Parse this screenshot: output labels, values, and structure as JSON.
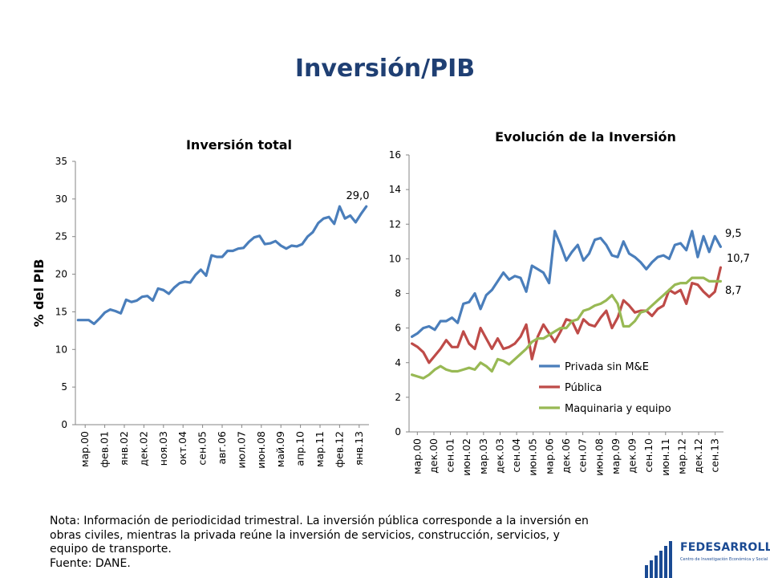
{
  "title": "Inversión/PIB",
  "note": {
    "lines": [
      "Nota: Información de periodicidad trimestral. La inversión pública corresponde a la inversión en",
      "obras civiles, mientras la privada reúne la inversión de servicios, construcción, servicios, y",
      "equipo de transporte.",
      "Fuente: DANE."
    ]
  },
  "logo": {
    "name": "FEDESARROLLO",
    "subtitle": "Centro de Investigación Económica y Social"
  },
  "colors": {
    "title": "#1f3f73",
    "line1": "#4a7ebb",
    "privada": "#4a7ebb",
    "publica": "#be4b48",
    "maquinaria": "#98b954"
  },
  "chart_data": [
    {
      "type": "line",
      "title": "Inversión total",
      "ylabel": "% del PIB",
      "ylim": [
        0,
        35
      ],
      "yticks": [
        0,
        5,
        10,
        15,
        20,
        25,
        30,
        35
      ],
      "xticklabels": [
        "мар.00",
        "фев.01",
        "янв.02",
        "дек.02",
        "ноя.03",
        "окт.04",
        "сен.05",
        "авг.06",
        "июл.07",
        "июн.08",
        "май.09",
        "апр.10",
        "мар.11",
        "фев.12",
        "янв.13"
      ],
      "annotation": "29,0",
      "series": [
        {
          "values": [
            13.9,
            13.9,
            13.9,
            13.4,
            14.1,
            14.9,
            15.3,
            15.1,
            14.8,
            16.6,
            16.3,
            16.5,
            17.0,
            17.1,
            16.5,
            18.1,
            17.9,
            17.4,
            18.2,
            18.8,
            19.0,
            18.9,
            19.9,
            20.6,
            19.8,
            22.5,
            22.3,
            22.3,
            23.1,
            23.1,
            23.4,
            23.5,
            24.3,
            24.9,
            25.1,
            24.0,
            24.1,
            24.4,
            23.8,
            23.4,
            23.8,
            23.7,
            24.0,
            25.0,
            25.6,
            26.8,
            27.4,
            27.6,
            26.7,
            29.0,
            27.4,
            27.8,
            26.9,
            28.0,
            29.0
          ]
        }
      ]
    },
    {
      "type": "line",
      "title": "Evolución de la Inversión",
      "ylim": [
        0,
        16
      ],
      "yticks": [
        0,
        2,
        4,
        6,
        8,
        10,
        12,
        14,
        16
      ],
      "xticklabels": [
        "мар.00",
        "дек.00",
        "сен.01",
        "июн.02",
        "мар.03",
        "дек.03",
        "сен.04",
        "июн.05",
        "мар.06",
        "дек.06",
        "сен.07",
        "июн.08",
        "мар.09",
        "дек.09",
        "сен.10",
        "июн.11",
        "мар.12",
        "дек.12",
        "сен.13"
      ],
      "legend_position": "bottom-right",
      "annotations": [
        "9,5",
        "10,7",
        "8,7"
      ],
      "series": [
        {
          "name": "Privada sin M&E",
          "values": [
            5.5,
            5.7,
            6.0,
            6.1,
            5.9,
            6.4,
            6.4,
            6.6,
            6.3,
            7.4,
            7.5,
            8.0,
            7.1,
            7.9,
            8.2,
            8.7,
            9.2,
            8.8,
            9.0,
            8.9,
            8.1,
            9.6,
            9.4,
            9.2,
            8.6,
            11.6,
            10.8,
            9.9,
            10.4,
            10.8,
            9.9,
            10.3,
            11.1,
            11.2,
            10.8,
            10.2,
            10.1,
            11.0,
            10.3,
            10.1,
            9.8,
            9.4,
            9.8,
            10.1,
            10.2,
            10.0,
            10.8,
            10.9,
            10.5,
            11.6,
            10.1,
            11.3,
            10.4,
            11.3,
            10.7
          ]
        },
        {
          "name": "Pública",
          "values": [
            5.1,
            4.9,
            4.6,
            4.0,
            4.4,
            4.8,
            5.3,
            4.9,
            4.9,
            5.8,
            5.1,
            4.8,
            6.0,
            5.4,
            4.8,
            5.4,
            4.8,
            4.9,
            5.1,
            5.5,
            6.2,
            4.2,
            5.5,
            6.2,
            5.7,
            5.2,
            5.8,
            6.5,
            6.4,
            5.7,
            6.5,
            6.2,
            6.1,
            6.6,
            7.0,
            6.0,
            6.6,
            7.6,
            7.3,
            6.9,
            7.0,
            7.0,
            6.7,
            7.1,
            7.3,
            8.2,
            8.0,
            8.2,
            7.4,
            8.6,
            8.5,
            8.1,
            7.8,
            8.1,
            9.5
          ]
        },
        {
          "name": "Maquinaria y equipo",
          "values": [
            3.3,
            3.2,
            3.1,
            3.3,
            3.6,
            3.8,
            3.6,
            3.5,
            3.5,
            3.6,
            3.7,
            3.6,
            4.0,
            3.8,
            3.5,
            4.2,
            4.1,
            3.9,
            4.2,
            4.5,
            4.8,
            5.2,
            5.4,
            5.4,
            5.6,
            5.8,
            6.0,
            6.0,
            6.4,
            6.5,
            7.0,
            7.1,
            7.3,
            7.4,
            7.6,
            7.9,
            7.4,
            6.1,
            6.1,
            6.4,
            6.9,
            7.0,
            7.3,
            7.6,
            7.9,
            8.2,
            8.5,
            8.6,
            8.6,
            8.9,
            8.9,
            8.9,
            8.7,
            8.7,
            8.7
          ]
        }
      ]
    }
  ]
}
